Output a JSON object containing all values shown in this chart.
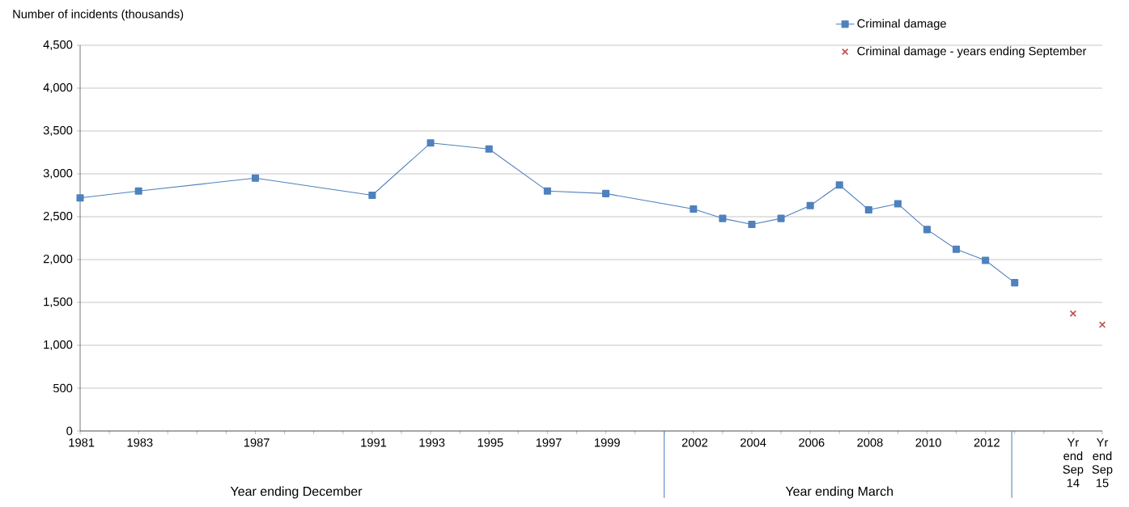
{
  "chart_data": {
    "type": "line",
    "ylabel": "Number of incidents (thousands)",
    "categories": [
      "1981",
      null,
      "1983",
      null,
      null,
      null,
      "1987",
      null,
      null,
      null,
      "1991",
      null,
      "1993",
      null,
      "1995",
      null,
      "1997",
      null,
      "1999",
      null,
      null,
      "2002",
      null,
      "2004",
      null,
      "2006",
      null,
      "2008",
      null,
      "2010",
      null,
      "2012",
      null,
      null,
      "Yr end Sep 14",
      "Yr end Sep 15"
    ],
    "series": [
      {
        "name": "Criminal damage",
        "marker": "square",
        "color": "#4f81bd",
        "values": [
          2720,
          null,
          2800,
          null,
          null,
          null,
          2950,
          null,
          null,
          null,
          2750,
          null,
          3360,
          null,
          3290,
          null,
          2800,
          null,
          2770,
          null,
          null,
          2590,
          2480,
          2410,
          2480,
          2630,
          2870,
          2580,
          2650,
          2350,
          2120,
          1990,
          1730,
          null,
          null,
          null
        ]
      },
      {
        "name": "Criminal damage - years ending September",
        "type": "scatter",
        "marker": "cross",
        "color": "#c0504d",
        "values": [
          null,
          null,
          null,
          null,
          null,
          null,
          null,
          null,
          null,
          null,
          null,
          null,
          null,
          null,
          null,
          null,
          null,
          null,
          null,
          null,
          null,
          null,
          null,
          null,
          null,
          null,
          null,
          null,
          null,
          null,
          null,
          null,
          null,
          null,
          1370,
          1240
        ]
      }
    ],
    "ylim": [
      0,
      4500
    ],
    "yticks": [
      0,
      500,
      {
        "value": 1000,
        "label": "1,000"
      },
      {
        "value": 1500,
        "label": "1,500"
      },
      {
        "value": 2000,
        "label": "2,000"
      },
      {
        "value": 2500,
        "label": "2,500"
      },
      {
        "value": 3000,
        "label": "3,000"
      },
      {
        "value": 3500,
        "label": "3,500"
      },
      {
        "value": 4000,
        "label": "4,000"
      },
      {
        "value": 4500,
        "label": "4,500"
      }
    ],
    "grid": "y",
    "legend": "top right",
    "annotations": [
      "Year ending December",
      "Year ending March"
    ]
  }
}
